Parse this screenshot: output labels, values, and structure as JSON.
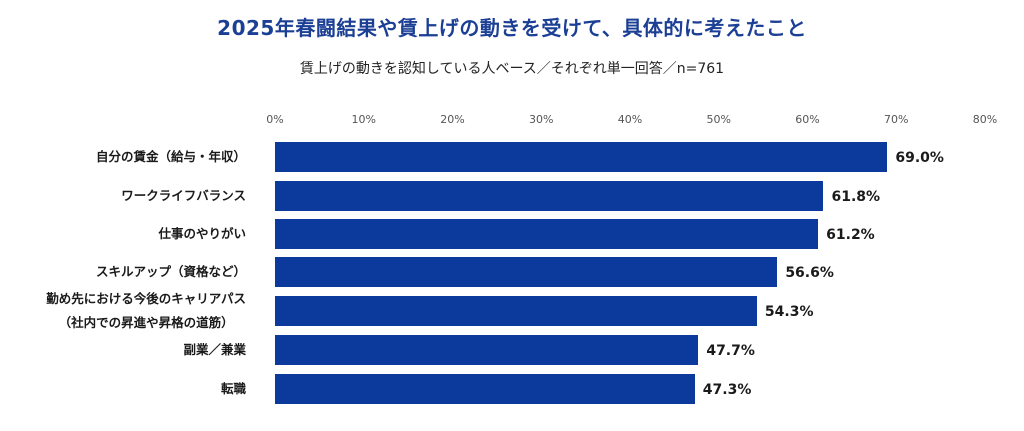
{
  "title": "2025年春闘結果や賃上げの動きを受けて、具体的に考えたこと",
  "subtitle": "賃上げの動きを認知している人ベース／それぞれ単一回答／n=761",
  "axis": {
    "ticks": [
      "0%",
      "10%",
      "20%",
      "30%",
      "40%",
      "50%",
      "60%",
      "70%",
      "80%"
    ]
  },
  "rows": [
    {
      "label": "自分の賃金（給与・年収）",
      "label2": "",
      "value": "69.0%"
    },
    {
      "label": "ワークライフバランス",
      "label2": "",
      "value": "61.8%"
    },
    {
      "label": "仕事のやりがい",
      "label2": "",
      "value": "61.2%"
    },
    {
      "label": "スキルアップ（資格など）",
      "label2": "",
      "value": "56.6%"
    },
    {
      "label": "勤め先における今後のキャリアパス",
      "label2": "（社内での昇進や昇格の道筋）",
      "value": "54.3%"
    },
    {
      "label": "副業／兼業",
      "label2": "",
      "value": "47.7%"
    },
    {
      "label": "転職",
      "label2": "",
      "value": "47.3%"
    }
  ],
  "colors": {
    "bar": "#0b3a9c",
    "title": "#1b3f94"
  },
  "chart_data": {
    "type": "bar",
    "orientation": "horizontal",
    "title": "2025年春闘結果や賃上げの動きを受けて、具体的に考えたこと",
    "subtitle": "賃上げの動きを認知している人ベース／それぞれ単一回答／n=761",
    "categories": [
      "自分の賃金（給与・年収）",
      "ワークライフバランス",
      "仕事のやりがい",
      "スキルアップ（資格など）",
      "勤め先における今後のキャリアパス（社内での昇進や昇格の道筋）",
      "副業／兼業",
      "転職"
    ],
    "values": [
      69.0,
      61.8,
      61.2,
      56.6,
      54.3,
      47.7,
      47.3
    ],
    "xlabel": "",
    "ylabel": "",
    "xlim": [
      0,
      80
    ],
    "xticks": [
      "0%",
      "10%",
      "20%",
      "30%",
      "40%",
      "50%",
      "60%",
      "70%",
      "80%"
    ],
    "grid": false,
    "legend": null,
    "data_labels": true
  }
}
